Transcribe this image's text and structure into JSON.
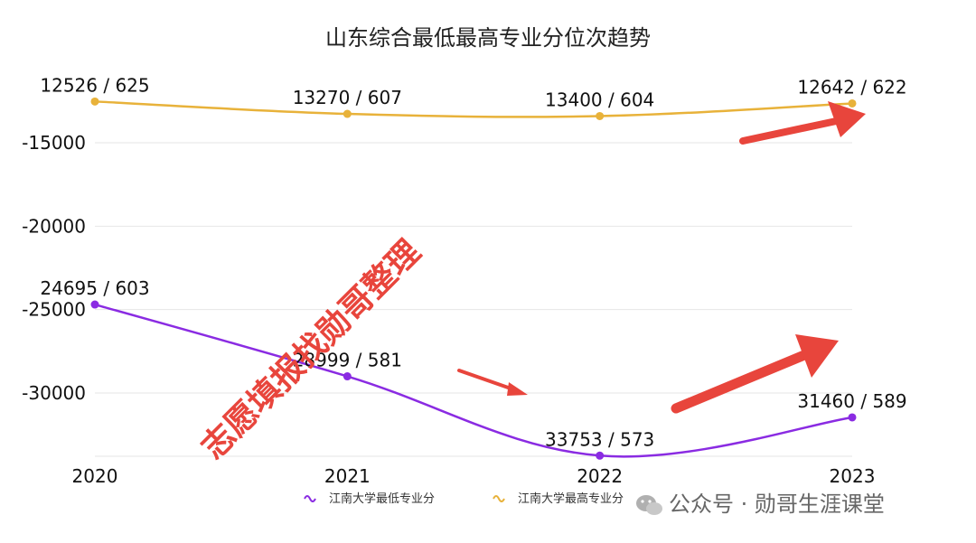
{
  "chart_data": {
    "type": "line",
    "title": "山东综合最低最高专业分位次趋势",
    "categories": [
      "2020",
      "2021",
      "2022",
      "2023"
    ],
    "ylim": [
      -34000,
      -12000
    ],
    "yticks": [
      -15000,
      -20000,
      -25000,
      -30000
    ],
    "ytick_labels": [
      "-15000",
      "-20000",
      "-25000",
      "-30000"
    ],
    "grid": true,
    "legend_position": "bottom-center",
    "series": [
      {
        "name": "江南大学最低专业分",
        "color": "#8a2be2",
        "values": [
          -24695,
          -28999,
          -33753,
          -31460
        ],
        "labels": [
          "24695 / 603",
          "28999 / 581",
          "33753 / 573",
          "31460 / 589"
        ]
      },
      {
        "name": "江南大学最高专业分",
        "color": "#e8b23a",
        "values": [
          -12526,
          -13270,
          -13400,
          -12642
        ],
        "labels": [
          "12526 / 625",
          "13270 / 607",
          "13400 / 604",
          "12642 / 622"
        ]
      }
    ]
  },
  "watermark": {
    "text": "志愿填报找勋哥整理",
    "color": "#e8453c"
  },
  "branding": {
    "text": "公众号 · 勋哥生涯课堂",
    "icon": "wechat-icon"
  },
  "arrows": {
    "color": "#e8453c"
  }
}
